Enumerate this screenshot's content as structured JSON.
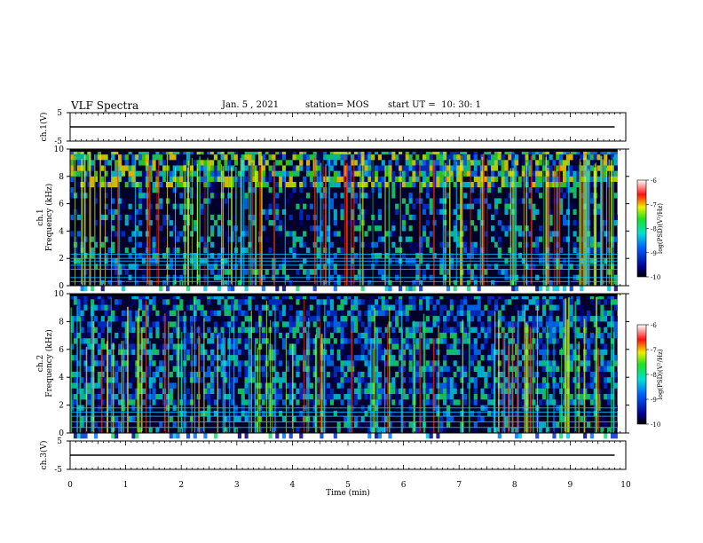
{
  "header": {
    "title": "VLF Spectra",
    "date": "Jan. 5 , 2021",
    "station": "station= MOS",
    "start": "start UT =  10: 30: 1"
  },
  "chart_data": [
    {
      "type": "line",
      "panel": "ch1-waveform",
      "ylabel": "ch.1(V)",
      "yticks": [
        "5",
        "-5"
      ],
      "ylim": [
        -5,
        5
      ],
      "xlim": [
        0,
        10
      ],
      "series": [
        {
          "x": [
            0,
            9.8
          ],
          "values": [
            0,
            0
          ]
        }
      ]
    },
    {
      "type": "heatmap",
      "panel": "ch1-spectrogram",
      "ylabel": "ch.1",
      "ylabel2": "Frequency (kHz)",
      "yticks": [
        0,
        2,
        4,
        6,
        8,
        10
      ],
      "ylim": [
        0,
        10
      ],
      "xlim": [
        0,
        10
      ],
      "colorbar": {
        "label": "log(PSD)(V²/Hz)",
        "ticks": [
          "-6",
          "-7",
          "-8",
          "-9",
          "-10"
        ],
        "range": [
          -10,
          -6
        ]
      }
    },
    {
      "type": "heatmap",
      "panel": "ch2-spectrogram",
      "ylabel": "ch.2",
      "ylabel2": "Frequency (kHz)",
      "yticks": [
        0,
        2,
        4,
        6,
        8,
        10
      ],
      "ylim": [
        0,
        10
      ],
      "xlim": [
        0,
        10
      ],
      "colorbar": {
        "label": "log(PSD)(V²/Hz)",
        "ticks": [
          "-6",
          "-7",
          "-8",
          "-9",
          "-10"
        ],
        "range": [
          -10,
          -6
        ]
      }
    },
    {
      "type": "line",
      "panel": "ch3-waveform",
      "ylabel": "ch.3(V)",
      "yticks": [
        "5",
        "-5"
      ],
      "ylim": [
        -5,
        5
      ],
      "xlim": [
        0,
        10
      ],
      "xlabel": "Time (min)",
      "xticks": [
        0,
        1,
        2,
        3,
        4,
        5,
        6,
        7,
        8,
        9,
        10
      ],
      "series": [
        {
          "x": [
            0,
            9.8
          ],
          "values": [
            0,
            0
          ]
        }
      ]
    }
  ]
}
